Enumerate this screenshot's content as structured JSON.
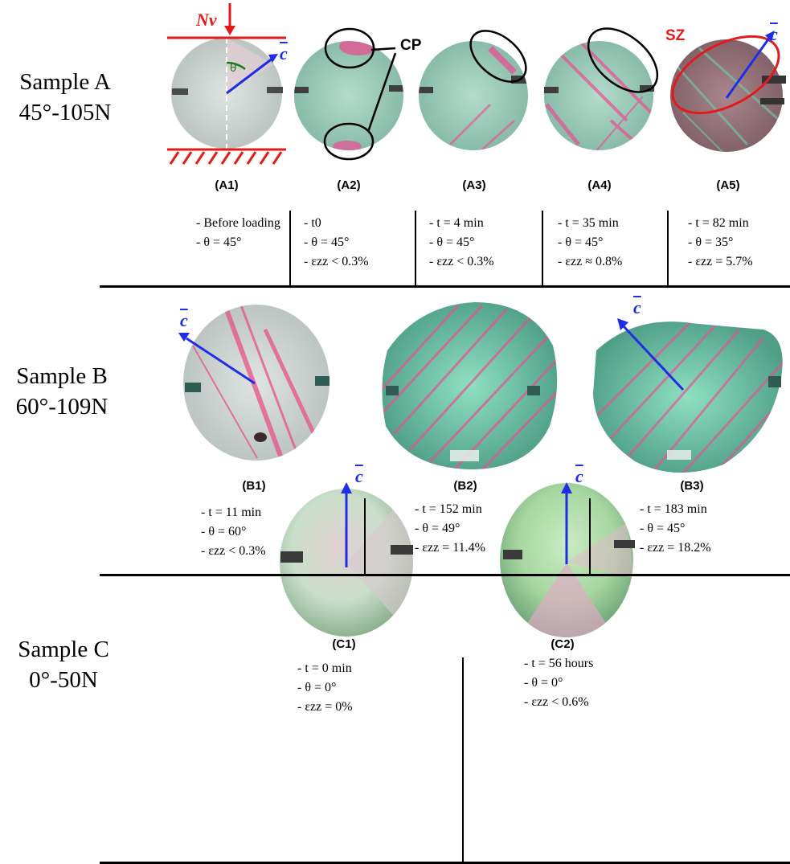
{
  "samples": {
    "A": {
      "name": "Sample A",
      "params": "45°-105N",
      "panels": [
        {
          "id": "(A1)",
          "lines": [
            "- Before loading",
            "- θ = 45°"
          ]
        },
        {
          "id": "(A2)",
          "lines": [
            "-    t0",
            "-    θ = 45°",
            "-    εzz < 0.3%"
          ]
        },
        {
          "id": "(A3)",
          "lines": [
            "-    t = 4 min",
            "-    θ = 45°",
            "-    εzz < 0.3%"
          ]
        },
        {
          "id": "(A4)",
          "lines": [
            "-    t = 35 min",
            "-    θ = 45°",
            "-    εzz ≈ 0.8%"
          ]
        },
        {
          "id": "(A5)",
          "lines": [
            "-    t = 82 min",
            "-    θ = 35°",
            "-    εzz = 5.7%"
          ]
        }
      ]
    },
    "B": {
      "name": "Sample B",
      "params": "60°-109N",
      "panels": [
        {
          "id": "(B1)",
          "lines": [
            "-    t = 11 min",
            "-    θ = 60°",
            "-    εzz < 0.3%"
          ]
        },
        {
          "id": "(B2)",
          "lines": [
            "-    t = 152 min",
            "-    θ = 49°",
            "-    εzz = 11.4%"
          ]
        },
        {
          "id": "(B3)",
          "lines": [
            "-    t = 183 min",
            "-    θ = 45°",
            "-    εzz = 18.2%"
          ]
        }
      ]
    },
    "C": {
      "name": "Sample C",
      "params": "0°-50N",
      "panels": [
        {
          "id": "(C1)",
          "lines": [
            "-    t = 0 min",
            "-    θ = 0°",
            "-    εzz = 0%"
          ]
        },
        {
          "id": "(C2)",
          "lines": [
            "-    t = 56 hours",
            "-    θ = 0°",
            "-    εzz < 0.6%"
          ]
        }
      ]
    }
  },
  "annotations": {
    "load": "Nv",
    "c_axis": "c",
    "theta": "θ",
    "cp": "CP",
    "sz": "SZ"
  },
  "colors": {
    "load": "#e31a1c",
    "c_axis": "#1f2ee6",
    "theta_arc": "#1a7a1a",
    "crystal_green": "#9fd8c4",
    "birefringence_pink": "#e8508a"
  }
}
